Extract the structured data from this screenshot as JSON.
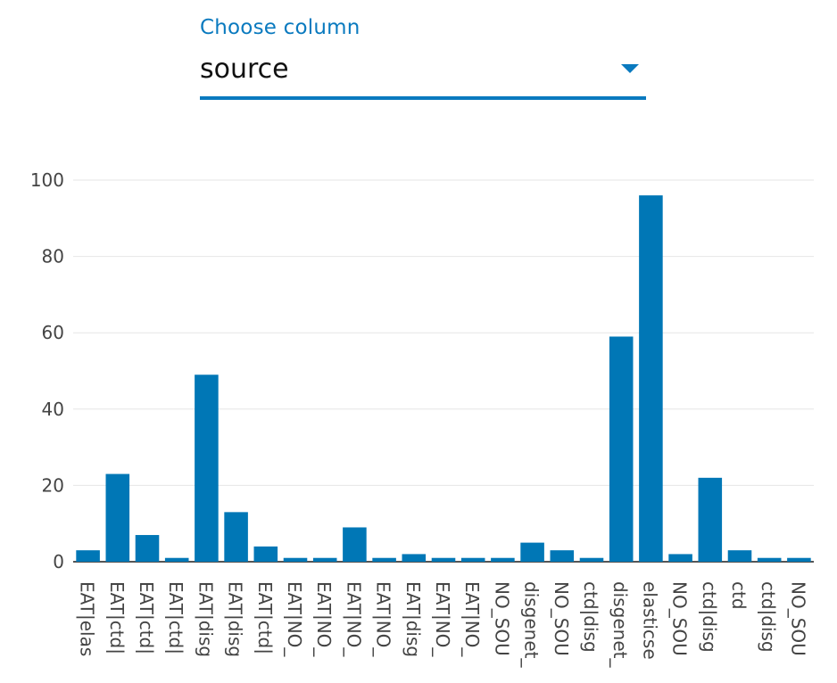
{
  "selector": {
    "label": "Choose column",
    "value": "source",
    "arrow_icon": "caret-down-icon",
    "accent_color": "#0a7abf"
  },
  "chart_data": {
    "type": "bar",
    "title": "",
    "xlabel": "",
    "ylabel": "",
    "ylim": [
      0,
      100
    ],
    "yticks": [
      0,
      20,
      40,
      60,
      80,
      100
    ],
    "grid": true,
    "bar_color": "#0077b6",
    "categories": [
      "EAT|elas",
      "EAT|ctd|",
      "EAT|ctd|",
      "EAT|ctd|",
      "EAT|disg",
      "EAT|disg",
      "EAT|ctd|",
      "EAT|NO_",
      "EAT|NO_",
      "EAT|NO_",
      "EAT|NO_",
      "EAT|disg",
      "EAT|NO_",
      "EAT|NO_",
      "NO_SOU",
      "disgenet_",
      "NO_SOU",
      "ctd|disg",
      "disgenet_",
      "elasticse",
      "NO_SOU",
      "ctd|disg",
      "ctd",
      "ctd|disg",
      "NO_SOU"
    ],
    "values": [
      3,
      23,
      7,
      1,
      49,
      13,
      4,
      1,
      1,
      9,
      1,
      2,
      1,
      1,
      1,
      5,
      3,
      1,
      59,
      96,
      2,
      22,
      3,
      1,
      1
    ]
  }
}
